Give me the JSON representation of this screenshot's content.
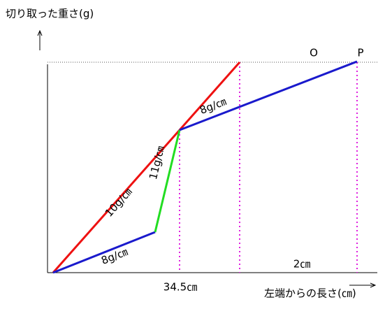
{
  "axes": {
    "y_label": "切り取った重さ(g)",
    "x_label": "左端からの長さ(㎝)"
  },
  "points": {
    "o": "O",
    "p": "P"
  },
  "slopes": {
    "red": "10g/㎝",
    "green": "11g/㎝",
    "blue_upper": "8g/㎝",
    "blue_lower": "8g/㎝"
  },
  "lengths": {
    "first": "34.5㎝",
    "last": "2㎝"
  }
}
